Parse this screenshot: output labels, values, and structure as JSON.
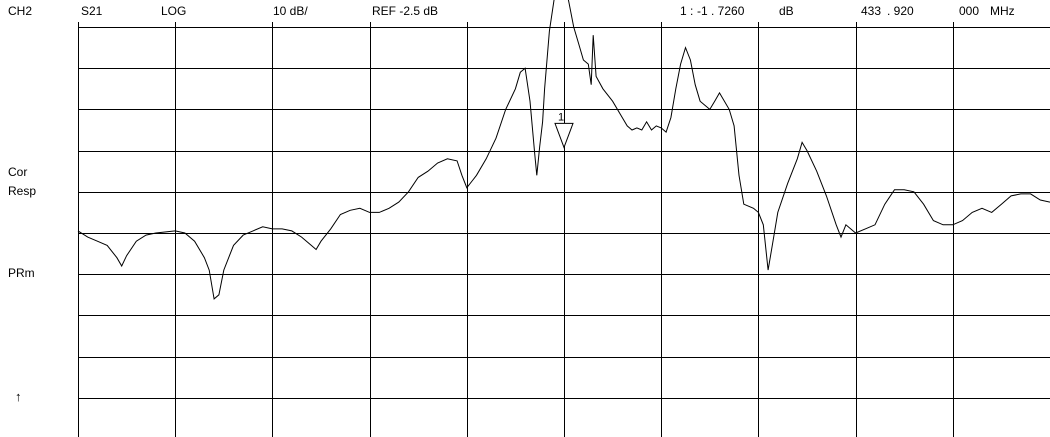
{
  "header": {
    "channel": "CH2",
    "parameter": "S21",
    "format": "LOG",
    "scale": "10 dB/",
    "reference": "REF -2.5 dB",
    "marker_index": "1 :",
    "marker_value": "-1 . 7260",
    "marker_value_unit": "dB",
    "marker_freq_1": "433",
    "marker_freq_2": ". 920",
    "marker_freq_3": "000",
    "marker_freq_unit": "MHz"
  },
  "side_labels": {
    "cor": "Cor",
    "resp": "Resp",
    "prm": "PRm",
    "ref_arrow": "↑"
  },
  "colors": {
    "trace": "#000000",
    "grid": "#000000",
    "background": "#ffffff"
  },
  "chart_data": {
    "type": "line",
    "divisions_x": 10,
    "divisions_y": 10,
    "scale_db_per_div": 10,
    "reference_db": -2.5,
    "grid": true,
    "marker": {
      "label": "1",
      "x_div": 5.0,
      "y_db": -1.726
    },
    "series": [
      {
        "values_div": [
          [
            0.0,
            -1.95
          ],
          [
            0.1,
            -2.1
          ],
          [
            0.2,
            -2.2
          ],
          [
            0.3,
            -2.3
          ],
          [
            0.4,
            -2.6
          ],
          [
            0.45,
            -2.8
          ],
          [
            0.5,
            -2.55
          ],
          [
            0.6,
            -2.2
          ],
          [
            0.7,
            -2.05
          ],
          [
            0.8,
            -2.0
          ],
          [
            1.0,
            -1.95
          ],
          [
            1.1,
            -2.0
          ],
          [
            1.2,
            -2.2
          ],
          [
            1.3,
            -2.6
          ],
          [
            1.35,
            -2.9
          ],
          [
            1.4,
            -3.6
          ],
          [
            1.45,
            -3.5
          ],
          [
            1.5,
            -2.9
          ],
          [
            1.6,
            -2.3
          ],
          [
            1.7,
            -2.05
          ],
          [
            1.8,
            -1.95
          ],
          [
            1.9,
            -1.85
          ],
          [
            2.0,
            -1.9
          ],
          [
            2.1,
            -1.9
          ],
          [
            2.2,
            -1.95
          ],
          [
            2.3,
            -2.1
          ],
          [
            2.4,
            -2.3
          ],
          [
            2.45,
            -2.4
          ],
          [
            2.5,
            -2.2
          ],
          [
            2.6,
            -1.9
          ],
          [
            2.7,
            -1.55
          ],
          [
            2.8,
            -1.45
          ],
          [
            2.9,
            -1.4
          ],
          [
            3.0,
            -1.5
          ],
          [
            3.1,
            -1.5
          ],
          [
            3.2,
            -1.4
          ],
          [
            3.3,
            -1.25
          ],
          [
            3.4,
            -1.0
          ],
          [
            3.5,
            -0.65
          ],
          [
            3.6,
            -0.5
          ],
          [
            3.7,
            -0.3
          ],
          [
            3.8,
            -0.2
          ],
          [
            3.9,
            -0.25
          ],
          [
            3.95,
            -0.6
          ],
          [
            4.0,
            -0.9
          ],
          [
            4.05,
            -0.75
          ],
          [
            4.1,
            -0.6
          ],
          [
            4.2,
            -0.2
          ],
          [
            4.3,
            0.3
          ],
          [
            4.4,
            1.0
          ],
          [
            4.5,
            1.5
          ],
          [
            4.55,
            1.9
          ],
          [
            4.6,
            2.0
          ],
          [
            4.65,
            1.2
          ],
          [
            4.7,
            -0.1
          ],
          [
            4.72,
            -0.6
          ],
          [
            4.75,
            0.1
          ],
          [
            4.78,
            0.7
          ],
          [
            4.8,
            1.5
          ],
          [
            4.85,
            2.9
          ],
          [
            4.9,
            3.7
          ],
          [
            4.95,
            4.1
          ],
          [
            5.0,
            4.2
          ],
          [
            5.05,
            3.6
          ],
          [
            5.1,
            3.0
          ],
          [
            5.15,
            2.6
          ],
          [
            5.2,
            2.2
          ],
          [
            5.25,
            2.1
          ],
          [
            5.28,
            1.6
          ],
          [
            5.3,
            2.8
          ],
          [
            5.33,
            1.8
          ],
          [
            5.4,
            1.5
          ],
          [
            5.5,
            1.2
          ],
          [
            5.6,
            0.8
          ],
          [
            5.65,
            0.6
          ],
          [
            5.7,
            0.5
          ],
          [
            5.75,
            0.55
          ],
          [
            5.8,
            0.5
          ],
          [
            5.85,
            0.7
          ],
          [
            5.9,
            0.5
          ],
          [
            5.95,
            0.6
          ],
          [
            6.0,
            0.55
          ],
          [
            6.05,
            0.45
          ],
          [
            6.1,
            0.8
          ],
          [
            6.15,
            1.5
          ],
          [
            6.2,
            2.1
          ],
          [
            6.25,
            2.5
          ],
          [
            6.3,
            2.2
          ],
          [
            6.35,
            1.6
          ],
          [
            6.4,
            1.2
          ],
          [
            6.5,
            1.0
          ],
          [
            6.55,
            1.2
          ],
          [
            6.6,
            1.4
          ],
          [
            6.7,
            1.0
          ],
          [
            6.75,
            0.6
          ],
          [
            6.8,
            -0.6
          ],
          [
            6.85,
            -1.3
          ],
          [
            6.95,
            -1.4
          ],
          [
            7.0,
            -1.5
          ],
          [
            7.05,
            -1.8
          ],
          [
            7.1,
            -2.9
          ],
          [
            7.15,
            -2.2
          ],
          [
            7.2,
            -1.5
          ],
          [
            7.3,
            -0.8
          ],
          [
            7.4,
            -0.2
          ],
          [
            7.45,
            0.2
          ],
          [
            7.5,
            0.0
          ],
          [
            7.6,
            -0.5
          ],
          [
            7.7,
            -1.1
          ],
          [
            7.8,
            -1.8
          ],
          [
            7.85,
            -2.1
          ],
          [
            7.9,
            -1.8
          ],
          [
            8.0,
            -2.0
          ],
          [
            8.1,
            -1.9
          ],
          [
            8.2,
            -1.8
          ],
          [
            8.3,
            -1.3
          ],
          [
            8.4,
            -0.95
          ],
          [
            8.5,
            -0.95
          ],
          [
            8.6,
            -1.0
          ],
          [
            8.7,
            -1.3
          ],
          [
            8.8,
            -1.7
          ],
          [
            8.9,
            -1.8
          ],
          [
            9.0,
            -1.8
          ],
          [
            9.1,
            -1.7
          ],
          [
            9.2,
            -1.5
          ],
          [
            9.3,
            -1.4
          ],
          [
            9.4,
            -1.5
          ],
          [
            9.5,
            -1.3
          ],
          [
            9.6,
            -1.1
          ],
          [
            9.7,
            -1.05
          ],
          [
            9.8,
            -1.05
          ],
          [
            9.9,
            -1.2
          ],
          [
            10.0,
            -1.25
          ]
        ]
      }
    ]
  }
}
